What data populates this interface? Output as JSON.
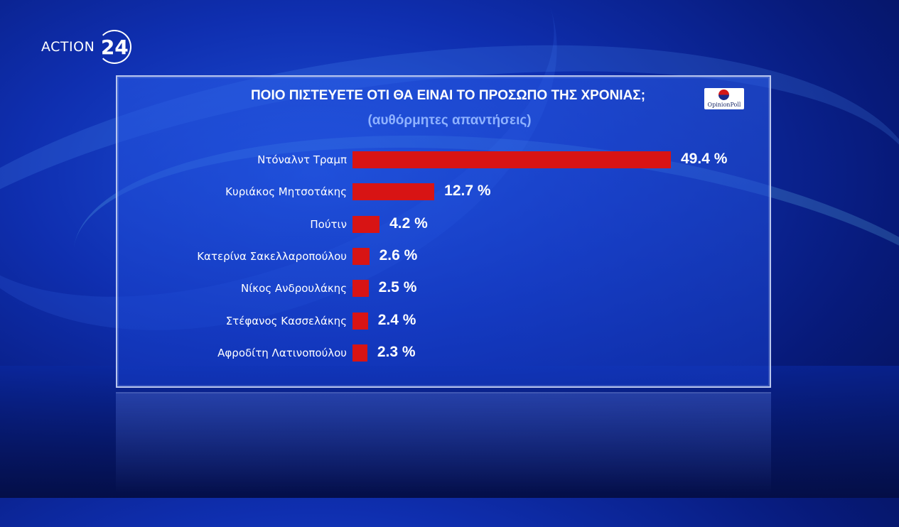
{
  "logo": {
    "text": "ACTION",
    "number": "24"
  },
  "pollster_logo": {
    "text": "OpinionPoll"
  },
  "colors": {
    "bar": "#d81414",
    "subtitle": "#8fb2ff"
  },
  "chart_data": {
    "type": "bar",
    "orientation": "horizontal",
    "title": "ΠΟΙΟ ΠΙΣΤΕΥΕΤΕ ΟΤΙ ΘΑ ΕΙΝΑΙ ΤΟ ΠΡΟΣΩΠΟ ΤΗΣ ΧΡΟΝΙΑΣ;",
    "subtitle": "(αυθόρμητες απαντήσεις)",
    "categories": [
      "Ντόναλντ Τραμπ",
      "Κυριάκος Μητσοτάκης",
      "Πούτιν",
      "Κατερίνα Σακελλαροπούλου",
      "Νίκος Ανδρουλάκης",
      "Στέφανος Κασσελάκης",
      "Αφροδίτη Λατινοπούλου"
    ],
    "values": [
      49.4,
      12.7,
      4.2,
      2.6,
      2.5,
      2.4,
      2.3
    ],
    "value_labels": [
      "49.4 %",
      "12.7 %",
      "4.2 %",
      "2.6 %",
      "2.5 %",
      "2.4 %",
      "2.3 %"
    ],
    "xlim": [
      0,
      50
    ],
    "grid": false,
    "legend": "none"
  }
}
